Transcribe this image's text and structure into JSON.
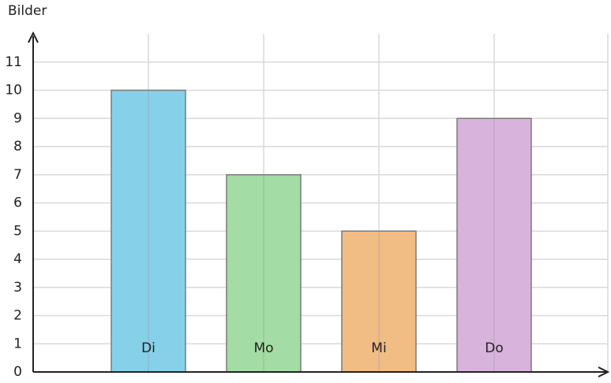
{
  "chart_data": {
    "type": "bar",
    "y_label": "Bilder",
    "categories": [
      "Di",
      "Mo",
      "Mi",
      "Do"
    ],
    "values": [
      10,
      7,
      5,
      9
    ],
    "colors": [
      "#87d0e9",
      "#a3dca4",
      "#f2bc85",
      "#d8b3dc"
    ],
    "ylim": [
      0,
      12
    ],
    "yticks": [
      0,
      1,
      2,
      3,
      4,
      5,
      6,
      7,
      8,
      9,
      10,
      11
    ],
    "grid": true
  }
}
